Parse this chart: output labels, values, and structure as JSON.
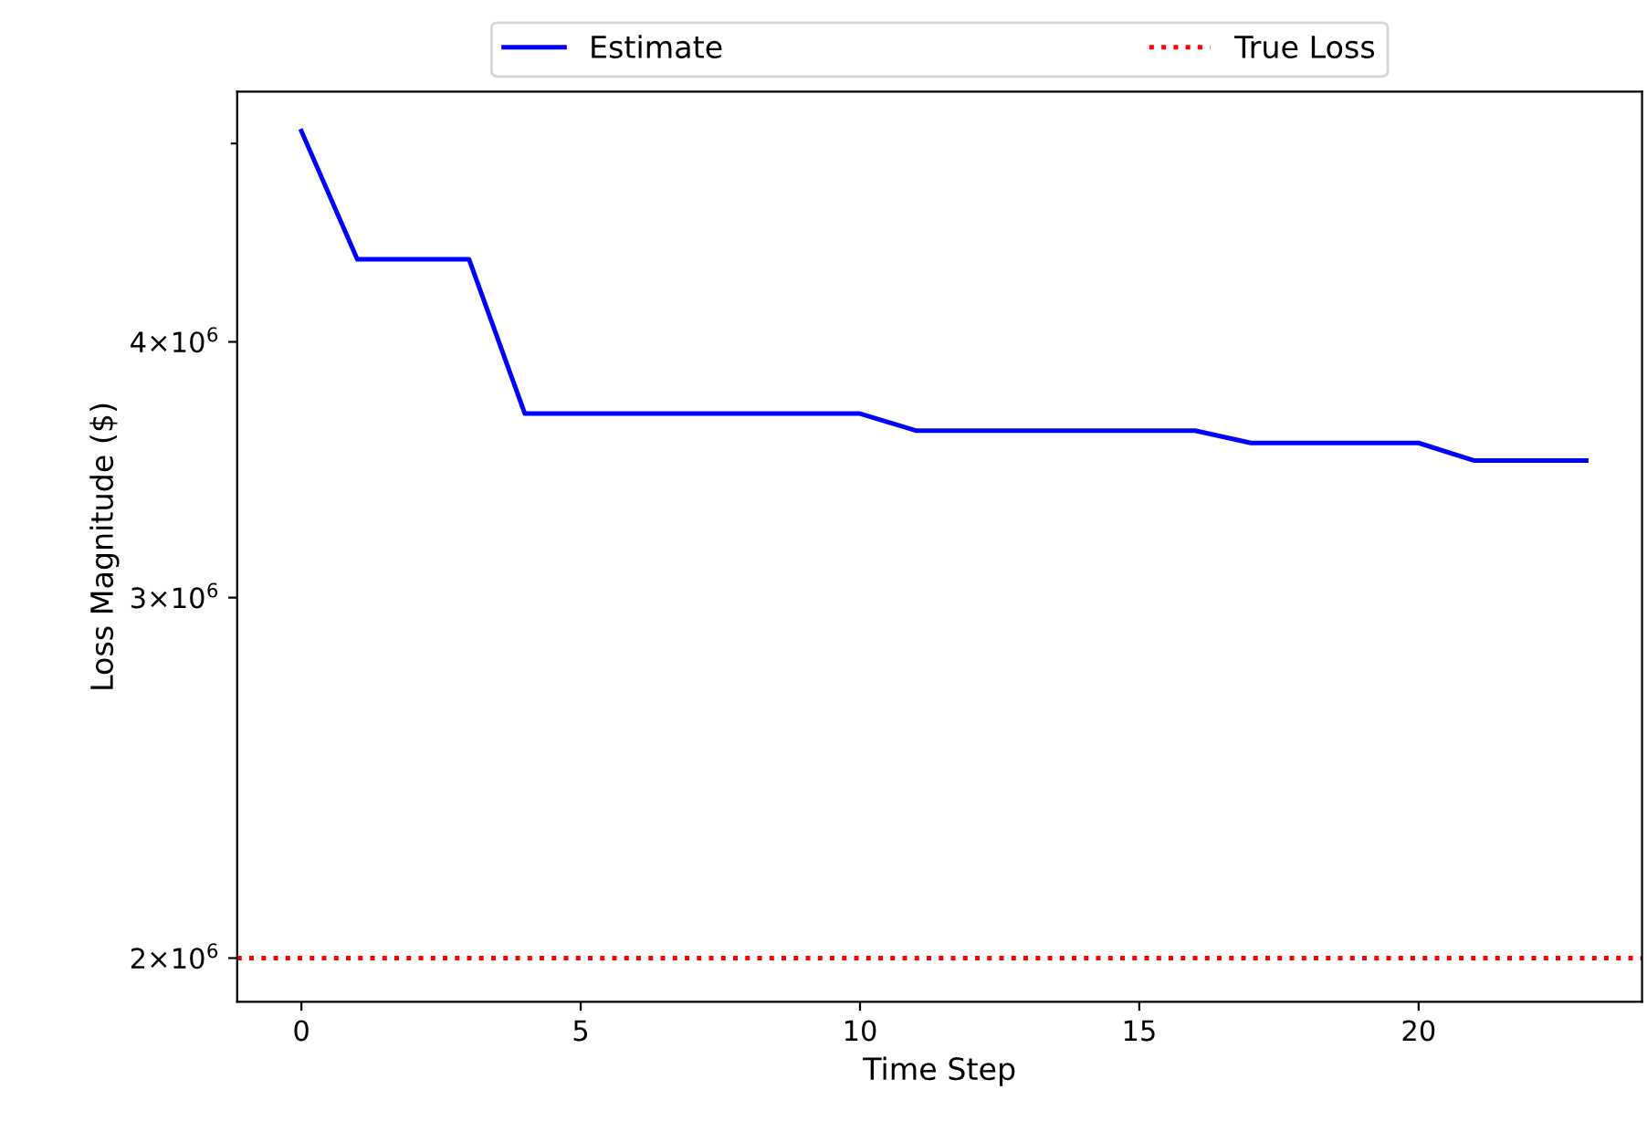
{
  "chart_data": {
    "type": "line",
    "xlabel": "Time Step",
    "ylabel": "Loss Magnitude ($)",
    "x": [
      0,
      1,
      2,
      3,
      4,
      5,
      6,
      7,
      8,
      9,
      10,
      11,
      12,
      13,
      14,
      15,
      16,
      17,
      18,
      19,
      20,
      21,
      22,
      23
    ],
    "series": [
      {
        "name": "Estimate",
        "color": "#0000ff",
        "values": [
          5070000,
          4390000,
          4390000,
          4390000,
          3690000,
          3690000,
          3690000,
          3690000,
          3690000,
          3690000,
          3690000,
          3620000,
          3620000,
          3620000,
          3620000,
          3620000,
          3620000,
          3570000,
          3570000,
          3570000,
          3570000,
          3500000,
          3500000,
          3500000
        ]
      }
    ],
    "log": "y",
    "xlim": [
      -1.15,
      24
    ],
    "ylim": [
      1904000,
      5300000
    ],
    "xticks": [
      0,
      5,
      10,
      15,
      20
    ],
    "yticks": [
      {
        "value": 2000000,
        "label": "2×10$^{6}$"
      },
      {
        "value": 3000000,
        "label": "3×10$^{6}$"
      },
      {
        "value": 4000000,
        "label": "4×10$^{6}$"
      },
      {
        "value": 5000000,
        "label": null
      }
    ],
    "ref_lines": [
      {
        "axis": "y",
        "value": 2000000,
        "label": "True Loss",
        "color": "#ff0000",
        "line_style": "dotted"
      }
    ],
    "legend": "top",
    "grid": false,
    "line_style": "solid",
    "marker": "none"
  }
}
